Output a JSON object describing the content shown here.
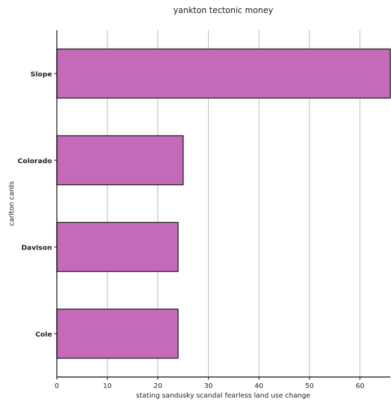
{
  "chart_data": {
    "type": "bar",
    "orientation": "horizontal",
    "title": "yankton tectonic money",
    "xlabel": "stating sandusky scandal fearless land use change",
    "ylabel": "carlton cards",
    "categories": [
      "Slope",
      "Colorado",
      "Davison",
      "Cole"
    ],
    "values": [
      66,
      25,
      24,
      24
    ],
    "xlim": [
      0,
      66
    ],
    "xticks": [
      "0",
      "10",
      "20",
      "30",
      "40",
      "50",
      "60"
    ],
    "grid": "vertical",
    "legend": "none",
    "bar_color": "#c46ab9"
  }
}
